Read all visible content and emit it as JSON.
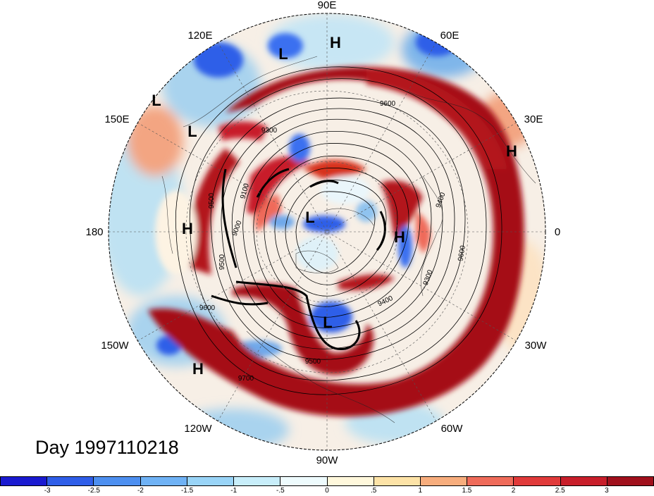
{
  "map": {
    "projection": "polar stereographic (north pole)",
    "date_label": "Day 1997110218",
    "longitude_labels": [
      "90E",
      "60E",
      "30E",
      "0",
      "30W",
      "60W",
      "90W",
      "120W",
      "150W",
      "180",
      "150E",
      "120E"
    ],
    "contour_labels": [
      "9600",
      "9300",
      "9400",
      "9100",
      "9500",
      "9000",
      "9500",
      "9600",
      "9400",
      "9300",
      "9500",
      "9700",
      "9600"
    ],
    "pressure_centers": [
      "H",
      "L",
      "L",
      "H",
      "L",
      "H",
      "H",
      "L",
      "H",
      "L",
      "H",
      "L"
    ],
    "field_colors": {
      "strong_positive": "#a50f15",
      "positive": "#e34a33",
      "weak_positive": "#fdd49e",
      "neutral": "#fff7e6",
      "weak_negative": "#c6e7f7",
      "negative": "#6baed6",
      "strong_negative": "#2b5fd9"
    }
  },
  "colorbar": {
    "ticks": [
      "-3",
      "-2.5",
      "-2",
      "-1.5",
      "-1",
      "-.5",
      "0",
      ".5",
      "1",
      "1.5",
      "2",
      "2.5",
      "3"
    ],
    "colors": [
      "#1a1ad0",
      "#2f5ee8",
      "#4d8ff0",
      "#6fb2f5",
      "#99d4f7",
      "#c8eefa",
      "#eefbfd",
      "#fff8dc",
      "#fde3a7",
      "#f7ad7d",
      "#ef6b5a",
      "#e03a3a",
      "#c81e2a",
      "#a0101c"
    ]
  }
}
